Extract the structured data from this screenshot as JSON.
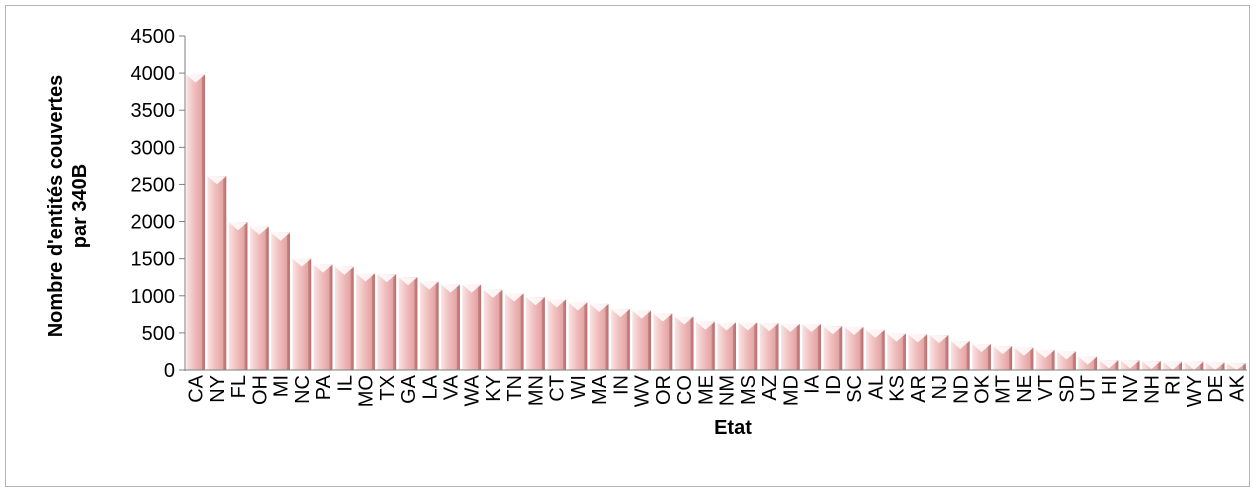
{
  "chart_data": {
    "type": "bar",
    "xlabel": "Etat",
    "ylabel_lines": [
      "Nombre d'entités couvertes",
      "par 340B"
    ],
    "ylim": [
      0,
      4500
    ],
    "yticks": [
      0,
      500,
      1000,
      1500,
      2000,
      2500,
      3000,
      3500,
      4000,
      4500
    ],
    "grid": false,
    "legend": "none",
    "bar_color": "#eeb3b3",
    "categories": [
      "CA",
      "NY",
      "FL",
      "OH",
      "MI",
      "NC",
      "PA",
      "IL",
      "MO",
      "TX",
      "GA",
      "LA",
      "VA",
      "WA",
      "KY",
      "TN",
      "MN",
      "CT",
      "WI",
      "MA",
      "IN",
      "WV",
      "OR",
      "CO",
      "ME",
      "NM",
      "MS",
      "AZ",
      "MD",
      "IA",
      "ID",
      "SC",
      "AL",
      "KS",
      "AR",
      "NJ",
      "ND",
      "OK",
      "MT",
      "NE",
      "VT",
      "SD",
      "UT",
      "HI",
      "NV",
      "NH",
      "RI",
      "WY",
      "DE",
      "AK"
    ],
    "values": [
      3980,
      2610,
      1990,
      1930,
      1850,
      1500,
      1420,
      1390,
      1300,
      1290,
      1250,
      1190,
      1150,
      1150,
      1080,
      1030,
      980,
      950,
      910,
      890,
      820,
      800,
      760,
      720,
      650,
      640,
      640,
      630,
      620,
      620,
      590,
      580,
      540,
      490,
      480,
      470,
      390,
      350,
      320,
      300,
      270,
      250,
      180,
      130,
      130,
      120,
      110,
      110,
      100,
      90
    ]
  }
}
